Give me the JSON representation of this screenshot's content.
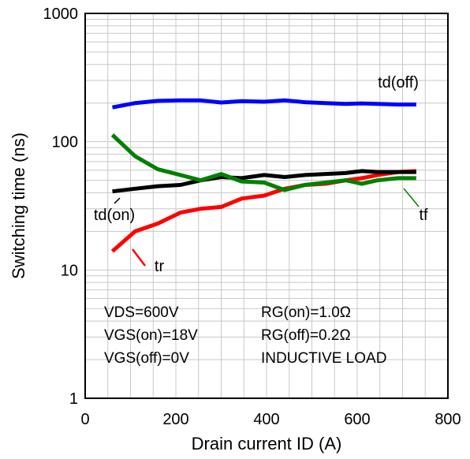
{
  "chart_data": {
    "type": "line",
    "xlabel": "Drain current ID (A)",
    "ylabel": "Switching time (ns)",
    "xlim": [
      0,
      800
    ],
    "ylim": [
      1,
      1000
    ],
    "yscale": "log",
    "grid": true,
    "x_ticks": [
      "0",
      "200",
      "400",
      "600",
      "800"
    ],
    "y_ticks": [
      "1",
      "10",
      "100",
      "1000"
    ],
    "x": [
      60,
      110,
      160,
      210,
      255,
      300,
      345,
      395,
      440,
      485,
      530,
      575,
      610,
      645,
      690,
      730
    ],
    "series": [
      {
        "name": "td(off)",
        "color": "#0000ff",
        "values": [
          185,
          200,
          208,
          210,
          210,
          202,
          207,
          205,
          210,
          203,
          200,
          197,
          199,
          197,
          195,
          195
        ]
      },
      {
        "name": "td(on)",
        "color": "#000000",
        "values": [
          41,
          43,
          45,
          46,
          50,
          53,
          52,
          55,
          53,
          55,
          56,
          57,
          59,
          58,
          58,
          58
        ]
      },
      {
        "name": "tf",
        "color": "#008000",
        "values": [
          113,
          77,
          61,
          55,
          50,
          56,
          49,
          48,
          42,
          46,
          48,
          50,
          47,
          50,
          52,
          52
        ]
      },
      {
        "name": "tr",
        "color": "#ff0000",
        "values": [
          14,
          20,
          23,
          28,
          30,
          31,
          36,
          38,
          43,
          46,
          47,
          50,
          52,
          55,
          58,
          59
        ]
      }
    ],
    "annotations": {
      "vds": "VDS=600V",
      "vgs_on": "VGS(on)=18V",
      "vgs_off": "VGS(off)=0V",
      "rg_on": "RG(on)=1.0Ω",
      "rg_off": "RG(off)=0.2Ω",
      "load": "INDUCTIVE LOAD"
    }
  }
}
